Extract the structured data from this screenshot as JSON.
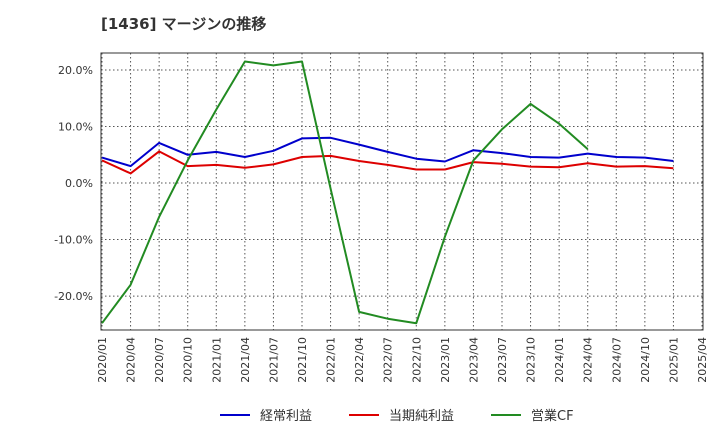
{
  "chart_data": {
    "type": "line",
    "title": "[1436]  マージンの推移",
    "xlabel": "",
    "ylabel": "",
    "x": [
      "2020/01",
      "2020/04",
      "2020/07",
      "2020/10",
      "2021/01",
      "2021/04",
      "2021/07",
      "2021/10",
      "2022/01",
      "2022/04",
      "2022/07",
      "2022/10",
      "2023/01",
      "2023/04",
      "2023/07",
      "2023/10",
      "2024/01",
      "2024/04",
      "2024/07",
      "2024/10",
      "2025/01",
      "2025/04"
    ],
    "yticks": [
      20,
      10,
      0,
      -10,
      -20
    ],
    "yticklabels": [
      "20.0%",
      "10.0%",
      "0.0%",
      "-10.0%",
      "-20.0%"
    ],
    "ylim": [
      -26,
      23
    ],
    "grid": true,
    "legend_position": "bottom",
    "series": [
      {
        "name": "経常利益",
        "color": "#0000cc",
        "values": [
          4.5,
          3.0,
          7.1,
          5.0,
          5.5,
          4.6,
          5.7,
          7.9,
          8.0,
          6.8,
          5.5,
          4.3,
          3.8,
          5.8,
          5.3,
          4.6,
          4.5,
          5.2,
          4.6,
          4.5,
          3.9,
          null
        ]
      },
      {
        "name": "当期純利益",
        "color": "#dd0000",
        "values": [
          4.0,
          1.7,
          5.6,
          3.0,
          3.2,
          2.7,
          3.3,
          4.6,
          4.8,
          3.9,
          3.2,
          2.4,
          2.4,
          3.7,
          3.4,
          2.9,
          2.8,
          3.5,
          2.9,
          3.0,
          2.6,
          null
        ]
      },
      {
        "name": "営業CF",
        "color": "#228b22",
        "values": [
          -24.8,
          -18.0,
          -6.0,
          4.0,
          13.0,
          21.5,
          20.8,
          21.5,
          -1.0,
          -22.8,
          -24.0,
          -24.8,
          -9.5,
          4.0,
          9.5,
          14.0,
          10.5,
          6.0,
          null,
          null,
          null,
          null
        ]
      }
    ]
  }
}
